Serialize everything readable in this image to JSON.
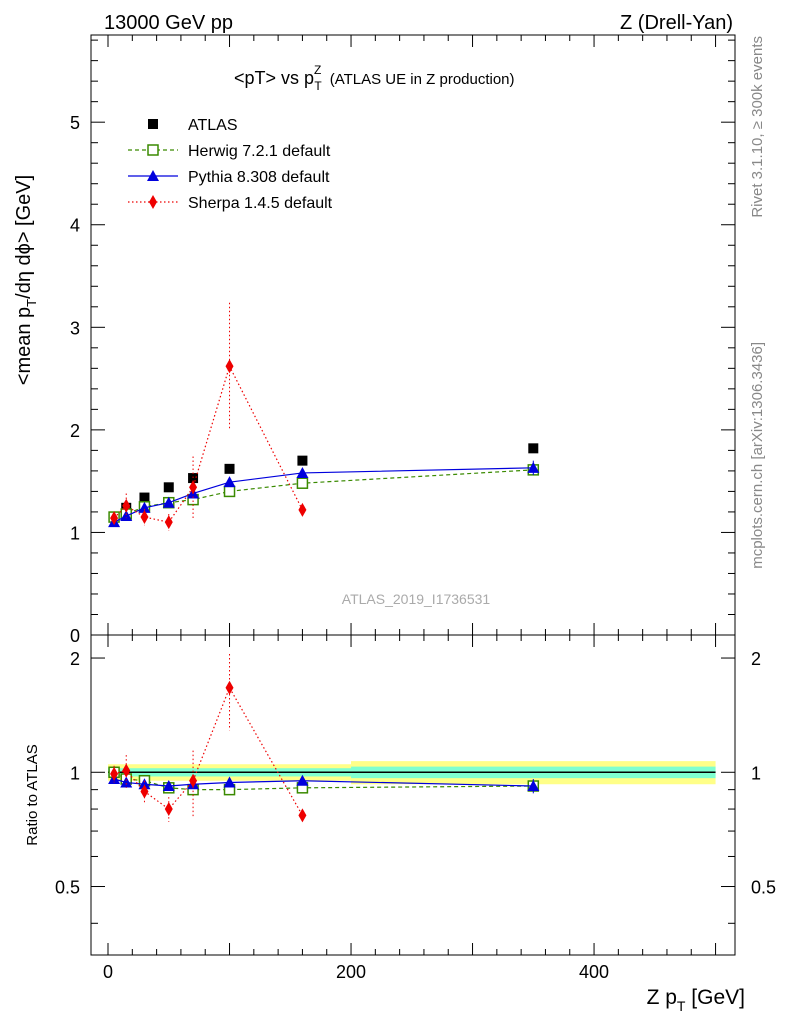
{
  "header": {
    "left": "13000 GeV pp",
    "right": "Z (Drell-Yan)"
  },
  "side_text": {
    "rivet": "Rivet 3.1.10, ≥ 300k events",
    "mcplots": "mcplots.cern.ch [arXiv:1306.3436]"
  },
  "watermark": "ATLAS_2019_I1736531",
  "colors": {
    "atlas": "#000000",
    "herwig": "#3a8a00",
    "pythia": "#0000dd",
    "sherpa": "#ee0000",
    "band_inner": "#7fffd0",
    "band_outer": "#ffff88"
  },
  "chart_data": [
    {
      "type": "scatter",
      "panel": "main",
      "title_main": "<pT> vs p",
      "title_sup": "Z",
      "title_sub": "T",
      "title_rest": "(ATLAS UE in Z production)",
      "ylabel": "<mean p_T/dη dϕ> [GeV]",
      "ylim": [
        0,
        5.85
      ],
      "yticks": [
        {
          "value": 0,
          "label": "0"
        },
        {
          "value": 1,
          "label": "1"
        },
        {
          "value": 2,
          "label": "2"
        },
        {
          "value": 3,
          "label": "3"
        },
        {
          "value": 4,
          "label": "4"
        },
        {
          "value": 5,
          "label": "5"
        }
      ],
      "legend_position": "top-left",
      "series": [
        {
          "name": "ATLAS",
          "style": "data",
          "x": [
            5,
            15,
            30,
            50,
            70,
            100,
            160,
            350
          ],
          "y": [
            1.15,
            1.24,
            1.34,
            1.44,
            1.53,
            1.62,
            1.7,
            1.82
          ]
        },
        {
          "name": "Herwig 7.2.1 default",
          "style": "herwig",
          "x": [
            5,
            15,
            30,
            50,
            70,
            100,
            160,
            350
          ],
          "y": [
            1.15,
            1.18,
            1.25,
            1.29,
            1.32,
            1.4,
            1.48,
            1.61
          ],
          "err": [
            0.01,
            0.01,
            0.01,
            0.01,
            0.02,
            0.02,
            0.02,
            0.03
          ]
        },
        {
          "name": "Pythia 8.308 default",
          "style": "pythia",
          "x": [
            5,
            15,
            30,
            50,
            70,
            100,
            160,
            350
          ],
          "y": [
            1.1,
            1.16,
            1.24,
            1.29,
            1.38,
            1.49,
            1.58,
            1.63
          ],
          "err": [
            0.01,
            0.01,
            0.01,
            0.01,
            0.02,
            0.02,
            0.03,
            0.07
          ]
        },
        {
          "name": "Sherpa 1.4.5 default",
          "style": "sherpa",
          "x": [
            5,
            15,
            30,
            50,
            70,
            100,
            160
          ],
          "y": [
            1.14,
            1.26,
            1.15,
            1.1,
            1.44,
            2.62,
            1.22
          ],
          "err": [
            0.06,
            0.12,
            0.08,
            0.08,
            0.3,
            0.62,
            0.03
          ]
        }
      ]
    },
    {
      "type": "scatter",
      "panel": "ratio",
      "ylabel": "Ratio to ATLAS",
      "ylim": [
        0.33,
        2.3
      ],
      "yticks": [
        {
          "value": 0.5,
          "label": "0.5"
        },
        {
          "value": 1,
          "label": "1"
        },
        {
          "value": 2,
          "label": "2"
        }
      ],
      "xlabel": "Z p_T [GeV]",
      "xlim": [
        -14,
        516
      ],
      "xticks": [
        {
          "value": 0,
          "label": "0"
        },
        {
          "value": 200,
          "label": "200"
        },
        {
          "value": 400,
          "label": "400"
        }
      ],
      "bands": [
        {
          "x0": 0,
          "x1": 200,
          "inner": 0.025,
          "outer": 0.05
        },
        {
          "x0": 200,
          "x1": 500,
          "inner": 0.035,
          "outer": 0.07
        }
      ],
      "series": [
        {
          "name": "Herwig 7.2.1 default",
          "style": "herwig",
          "x": [
            5,
            15,
            30,
            50,
            70,
            100,
            160,
            350
          ],
          "y": [
            1.0,
            0.96,
            0.95,
            0.91,
            0.9,
            0.9,
            0.91,
            0.92
          ],
          "err": [
            0.01,
            0.01,
            0.01,
            0.01,
            0.01,
            0.01,
            0.01,
            0.02
          ]
        },
        {
          "name": "Pythia 8.308 default",
          "style": "pythia",
          "x": [
            5,
            15,
            30,
            50,
            70,
            100,
            160,
            350
          ],
          "y": [
            0.96,
            0.94,
            0.93,
            0.92,
            0.93,
            0.94,
            0.95,
            0.92
          ],
          "err": [
            0.01,
            0.01,
            0.01,
            0.01,
            0.01,
            0.01,
            0.02,
            0.04
          ]
        },
        {
          "name": "Sherpa 1.4.5 default",
          "style": "sherpa",
          "x": [
            5,
            15,
            30,
            50,
            70,
            100,
            160
          ],
          "y": [
            0.99,
            1.01,
            0.89,
            0.8,
            0.95,
            1.67,
            0.77
          ],
          "err": [
            0.05,
            0.1,
            0.06,
            0.06,
            0.19,
            0.38,
            0.02
          ]
        }
      ]
    }
  ]
}
